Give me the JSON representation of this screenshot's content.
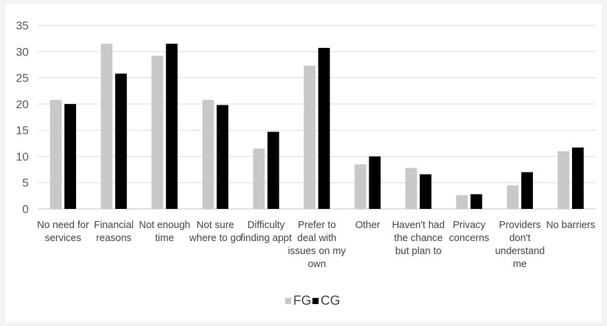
{
  "chart_data": {
    "type": "bar",
    "title": "",
    "xlabel": "",
    "ylabel": "",
    "ylim": [
      0,
      35
    ],
    "yticks": [
      0,
      5,
      10,
      15,
      20,
      25,
      30,
      35
    ],
    "grid": true,
    "legend_position": "bottom",
    "categories": [
      [
        "No need for",
        "services"
      ],
      [
        "Financial",
        "reasons"
      ],
      [
        "Not enough",
        "time"
      ],
      [
        "Not sure",
        "where to go"
      ],
      [
        "Difficulty",
        "finding appt"
      ],
      [
        "Prefer to",
        "deal with",
        "issues on my",
        "own"
      ],
      [
        "Other"
      ],
      [
        "Haven't had",
        "the chance",
        "but plan to"
      ],
      [
        "Privacy",
        "concerns"
      ],
      [
        "Providers",
        "don't",
        "understand",
        "me"
      ],
      [
        "No barriers"
      ]
    ],
    "series": [
      {
        "name": "FG",
        "color": "#c8c8c8",
        "values": [
          20.8,
          31.5,
          29.2,
          20.8,
          11.5,
          27.3,
          8.5,
          7.8,
          2.6,
          4.5,
          11.0
        ]
      },
      {
        "name": "CG",
        "color": "#000000",
        "values": [
          20.0,
          25.8,
          31.5,
          19.8,
          14.7,
          30.7,
          10.0,
          6.6,
          2.8,
          7.0,
          11.7
        ]
      }
    ]
  }
}
